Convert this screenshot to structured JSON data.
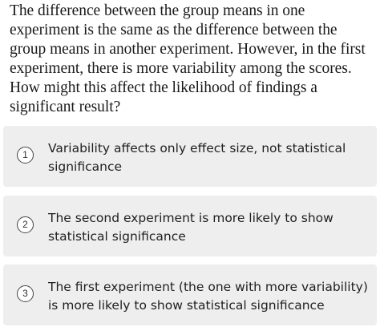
{
  "question": {
    "text": "The difference between the group means in one experiment is the same as the difference between the group means in another experiment. However, in the first experiment, there is more variability among the scores. How might this affect the likelihood of findings a significant result?"
  },
  "options": [
    {
      "number": "1",
      "label": "Variability affects only effect size, not statistical significance"
    },
    {
      "number": "2",
      "label": "The second experiment is more likely to show statistical significance"
    },
    {
      "number": "3",
      "label": "The first experiment (the one with more variability) is more likely to show statistical significance"
    }
  ]
}
